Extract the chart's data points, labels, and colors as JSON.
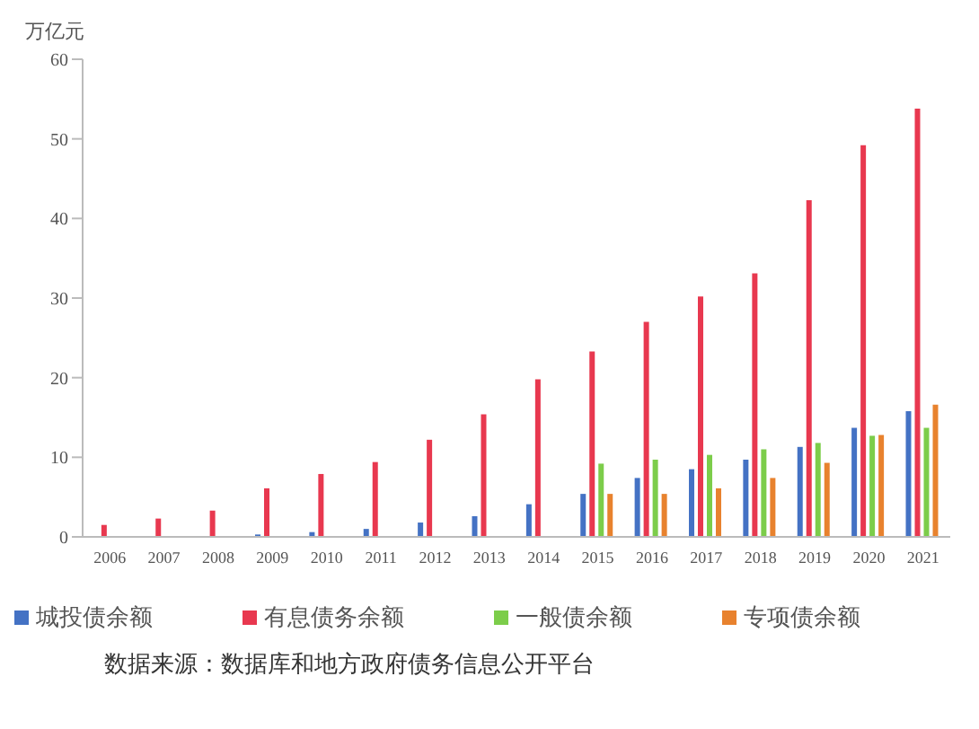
{
  "chart_data": {
    "type": "bar",
    "ylabel": "万亿元",
    "categories": [
      "2006",
      "2007",
      "2008",
      "2009",
      "2010",
      "2011",
      "2012",
      "2013",
      "2014",
      "2015",
      "2016",
      "2017",
      "2018",
      "2019",
      "2020",
      "2021"
    ],
    "series": [
      {
        "name": "城投债余额",
        "color": "#4472c4",
        "values": [
          null,
          null,
          null,
          0.3,
          0.6,
          1.0,
          1.8,
          2.6,
          4.1,
          5.4,
          7.4,
          8.5,
          9.7,
          11.3,
          13.7,
          15.8
        ]
      },
      {
        "name": "有息债务余额",
        "color": "#e8384f",
        "values": [
          1.5,
          2.3,
          3.3,
          6.1,
          7.9,
          9.4,
          12.2,
          15.4,
          19.8,
          23.3,
          27.0,
          30.2,
          33.1,
          42.3,
          49.2,
          53.8
        ]
      },
      {
        "name": "一般债余额",
        "color": "#7ccd4a",
        "values": [
          null,
          null,
          null,
          null,
          null,
          null,
          null,
          null,
          null,
          9.2,
          9.7,
          10.3,
          11.0,
          11.8,
          12.7,
          13.7
        ]
      },
      {
        "name": "专项债余额",
        "color": "#e8822e",
        "values": [
          null,
          null,
          null,
          null,
          null,
          null,
          null,
          null,
          null,
          5.4,
          5.4,
          6.1,
          7.4,
          9.3,
          12.8,
          16.6
        ]
      }
    ],
    "ylim": [
      0,
      60
    ],
    "yticks": [
      0,
      10,
      20,
      30,
      40,
      50,
      60
    ],
    "grid": false,
    "legend": "bottom",
    "annotations": [
      "数据来源：数据库和地方政府债务信息公开平台"
    ]
  }
}
